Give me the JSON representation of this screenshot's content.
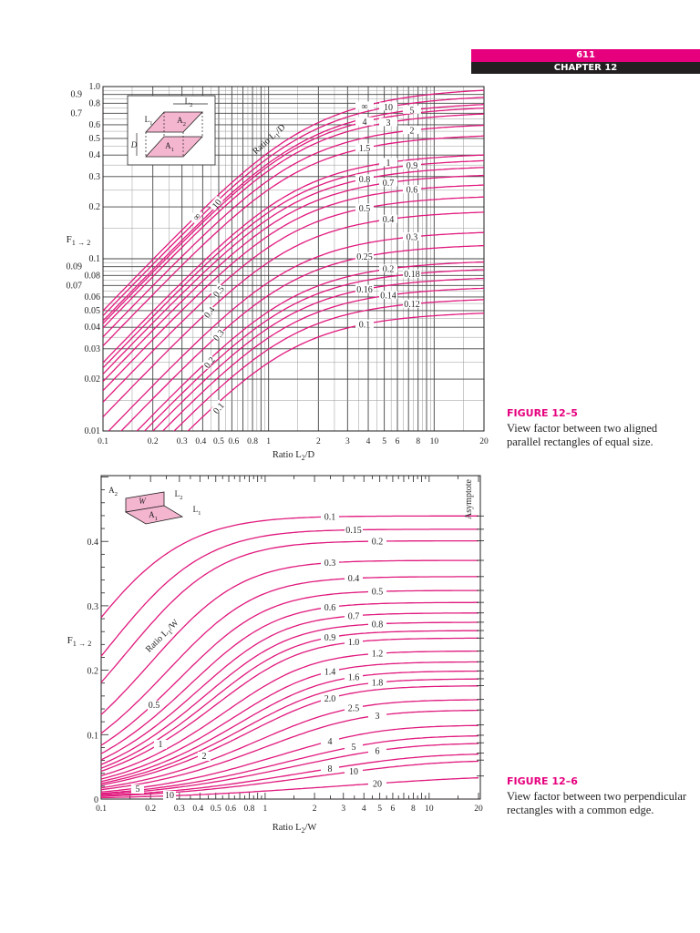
{
  "header": {
    "page_number": "611",
    "chapter": "CHAPTER 12"
  },
  "figures": [
    {
      "title": "FIGURE 12–5",
      "caption": "View factor between two aligned parallel rectangles of equal size."
    },
    {
      "title": "FIGURE 12–6",
      "caption": "View factor between two perpendicular rectangles with a common edge."
    }
  ],
  "colors": {
    "curve": "#e0197d",
    "accent": "#e6007e",
    "diagram_fill": "#f4b6cf"
  },
  "chart_data": [
    {
      "type": "line",
      "scale": "log-log",
      "grid": true,
      "ylabel": {
        "main": "F",
        "sub": "1 → 2"
      },
      "xlabel": {
        "main": "Ratio L",
        "sub": "2",
        "rest": "/D"
      },
      "param_label": {
        "main": "Ratio L",
        "sub": "1",
        "rest": "/D"
      },
      "xlim": [
        0.1,
        20
      ],
      "ylim": [
        0.01,
        1.0
      ],
      "x_ticks": [
        "0.1",
        "0.2",
        "0.3",
        "0.4",
        "0.5",
        "0.6",
        "0.8",
        "1",
        "2",
        "3",
        "4",
        "5",
        "6",
        "8",
        "10",
        "20"
      ],
      "y_ticks": [
        "1.0",
        "0.9",
        "0.8",
        "0.7",
        "0.6",
        "0.5",
        "0.4",
        "0.3",
        "0.2",
        "0.1",
        "0.09",
        "0.08",
        "0.07",
        "0.06",
        "0.05",
        "0.04",
        "0.03",
        "0.02",
        "0.01"
      ],
      "diagram": {
        "a2": "A",
        "a2sub": "2",
        "a1": "A",
        "a1sub": "1",
        "l1": "L",
        "l1sub": "1",
        "l2": "L",
        "l2sub": "2",
        "d": "D"
      },
      "series": [
        {
          "name": "∞",
          "param": "inf"
        },
        {
          "name": "10",
          "param": 10
        },
        {
          "name": "5",
          "param": 5
        },
        {
          "name": "4",
          "param": 4
        },
        {
          "name": "3",
          "param": 3
        },
        {
          "name": "2",
          "param": 2
        },
        {
          "name": "1.5",
          "param": 1.5
        },
        {
          "name": "1",
          "param": 1
        },
        {
          "name": "0.9",
          "param": 0.9
        },
        {
          "name": "0.8",
          "param": 0.8
        },
        {
          "name": "0.7",
          "param": 0.7
        },
        {
          "name": "0.6",
          "param": 0.6
        },
        {
          "name": "0.5",
          "param": 0.5
        },
        {
          "name": "0.4",
          "param": 0.4
        },
        {
          "name": "0.3",
          "param": 0.3
        },
        {
          "name": "0.25",
          "param": 0.25
        },
        {
          "name": "0.2",
          "param": 0.2
        },
        {
          "name": "0.18",
          "param": 0.18
        },
        {
          "name": "0.16",
          "param": 0.16
        },
        {
          "name": "0.14",
          "param": 0.14
        },
        {
          "name": "0.12",
          "param": 0.12
        },
        {
          "name": "0.1",
          "param": 0.1
        }
      ],
      "inline_labels": [
        "∞",
        "10",
        "0.5",
        "0.4",
        "0.3",
        "0.2",
        "0.1"
      ]
    },
    {
      "type": "line",
      "scale": "log-x, linear-y",
      "grid": false,
      "ylabel": {
        "main": "F",
        "sub": "1 → 2"
      },
      "xlabel": {
        "main": "Ratio L",
        "sub": "2",
        "rest": "/W"
      },
      "param_label": {
        "main": "Ratio L",
        "sub": "1",
        "rest": "/W"
      },
      "asymptote_label": "Asymptote",
      "xlim": [
        0.1,
        20
      ],
      "ylim": [
        0,
        0.5
      ],
      "x_ticks": [
        "0.1",
        "0.2",
        "0.3",
        "0.4",
        "0.5",
        "0.6",
        "0.8",
        "1",
        "2",
        "3",
        "4",
        "5",
        "6",
        "8",
        "10",
        "20"
      ],
      "y_ticks": [
        "0",
        "0.1",
        "0.2",
        "0.3",
        "0.4"
      ],
      "diagram": {
        "a2": "A",
        "a2sub": "2",
        "a1": "A",
        "a1sub": "1",
        "w": "W",
        "l1": "L",
        "l1sub": "1",
        "l2": "L",
        "l2sub": "2"
      },
      "series": [
        {
          "name": "0.1",
          "param": 0.1
        },
        {
          "name": "0.15",
          "param": 0.15
        },
        {
          "name": "0.2",
          "param": 0.2
        },
        {
          "name": "0.3",
          "param": 0.3
        },
        {
          "name": "0.4",
          "param": 0.4
        },
        {
          "name": "0.5",
          "param": 0.5
        },
        {
          "name": "0.6",
          "param": 0.6
        },
        {
          "name": "0.7",
          "param": 0.7
        },
        {
          "name": "0.8",
          "param": 0.8
        },
        {
          "name": "0.9",
          "param": 0.9
        },
        {
          "name": "1.0",
          "param": 1.0
        },
        {
          "name": "1.2",
          "param": 1.2
        },
        {
          "name": "1.4",
          "param": 1.4
        },
        {
          "name": "1.6",
          "param": 1.6
        },
        {
          "name": "1.8",
          "param": 1.8
        },
        {
          "name": "2.0",
          "param": 2.0
        },
        {
          "name": "2.5",
          "param": 2.5
        },
        {
          "name": "3",
          "param": 3
        },
        {
          "name": "4",
          "param": 4
        },
        {
          "name": "5",
          "param": 5
        },
        {
          "name": "6",
          "param": 6
        },
        {
          "name": "8",
          "param": 8
        },
        {
          "name": "10",
          "param": 10
        },
        {
          "name": "20",
          "param": 20
        }
      ],
      "inline_labels": [
        "0.5",
        "1",
        "2",
        "5",
        "10"
      ]
    }
  ]
}
